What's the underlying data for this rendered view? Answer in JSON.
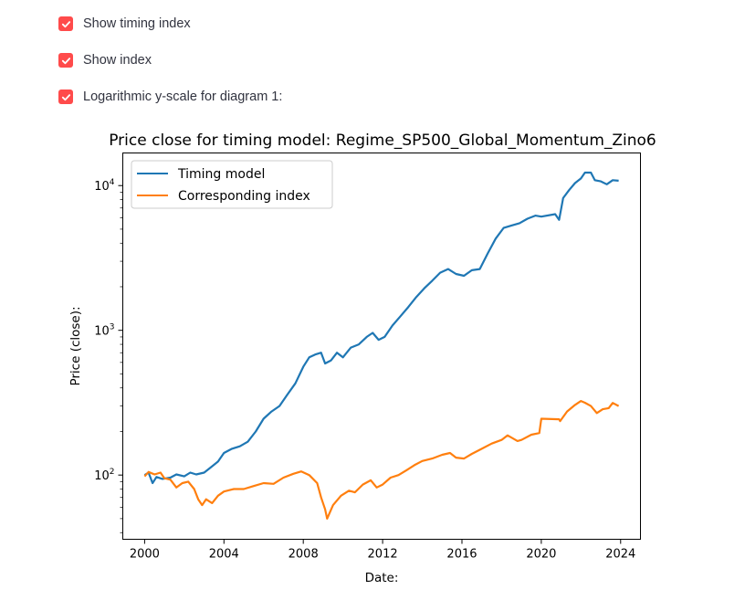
{
  "controls": {
    "checkboxes": [
      {
        "label": "Show timing index",
        "checked": true
      },
      {
        "label": "Show index",
        "checked": true
      },
      {
        "label": "Logarithmic y-scale for diagram 1:",
        "checked": true
      }
    ],
    "accent_color": "#ff4b4b"
  },
  "chart_data": {
    "type": "line",
    "title": "Price close for timing model: Regime_SP500_Global_Momentum_Zino6",
    "xlabel": "Date:",
    "ylabel": "Price (close):",
    "yscale": "log",
    "xlim": [
      1998.9,
      2025.0
    ],
    "ylim": [
      36,
      16800
    ],
    "x_ticks": [
      2000,
      2004,
      2008,
      2012,
      2016,
      2020,
      2024
    ],
    "x_tick_labels": [
      "2000",
      "2004",
      "2008",
      "2012",
      "2016",
      "2020",
      "2024"
    ],
    "y_ticks": [
      100,
      1000,
      10000
    ],
    "y_tick_labels": [
      {
        "base": "10",
        "exp": "2"
      },
      {
        "base": "10",
        "exp": "3"
      },
      {
        "base": "10",
        "exp": "4"
      }
    ],
    "legend_position": "top-left",
    "grid": false,
    "series": [
      {
        "name": "Timing model",
        "color": "#1f77b4",
        "points": [
          [
            2000.0,
            100
          ],
          [
            2000.2,
            104
          ],
          [
            2000.4,
            88
          ],
          [
            2000.6,
            97
          ],
          [
            2000.9,
            94
          ],
          [
            2001.3,
            96
          ],
          [
            2001.6,
            101
          ],
          [
            2002.0,
            98
          ],
          [
            2002.3,
            104
          ],
          [
            2002.6,
            101
          ],
          [
            2003.0,
            104
          ],
          [
            2003.3,
            112
          ],
          [
            2003.7,
            124
          ],
          [
            2004.0,
            142
          ],
          [
            2004.4,
            152
          ],
          [
            2004.8,
            158
          ],
          [
            2005.2,
            170
          ],
          [
            2005.6,
            200
          ],
          [
            2006.0,
            245
          ],
          [
            2006.4,
            275
          ],
          [
            2006.8,
            300
          ],
          [
            2007.2,
            360
          ],
          [
            2007.6,
            430
          ],
          [
            2008.0,
            560
          ],
          [
            2008.3,
            650
          ],
          [
            2008.6,
            680
          ],
          [
            2008.9,
            700
          ],
          [
            2009.1,
            590
          ],
          [
            2009.4,
            620
          ],
          [
            2009.7,
            700
          ],
          [
            2010.0,
            650
          ],
          [
            2010.4,
            760
          ],
          [
            2010.8,
            800
          ],
          [
            2011.2,
            900
          ],
          [
            2011.5,
            960
          ],
          [
            2011.8,
            860
          ],
          [
            2012.1,
            900
          ],
          [
            2012.5,
            1080
          ],
          [
            2012.9,
            1250
          ],
          [
            2013.3,
            1450
          ],
          [
            2013.7,
            1700
          ],
          [
            2014.1,
            1950
          ],
          [
            2014.5,
            2200
          ],
          [
            2014.9,
            2500
          ],
          [
            2015.3,
            2650
          ],
          [
            2015.7,
            2450
          ],
          [
            2016.1,
            2380
          ],
          [
            2016.5,
            2600
          ],
          [
            2016.9,
            2650
          ],
          [
            2017.3,
            3400
          ],
          [
            2017.7,
            4300
          ],
          [
            2018.1,
            5100
          ],
          [
            2018.5,
            5300
          ],
          [
            2018.9,
            5500
          ],
          [
            2019.3,
            5900
          ],
          [
            2019.7,
            6200
          ],
          [
            2020.0,
            6100
          ],
          [
            2020.7,
            6350
          ],
          [
            2020.9,
            5800
          ],
          [
            2021.1,
            8200
          ],
          [
            2021.4,
            9300
          ],
          [
            2021.7,
            10400
          ],
          [
            2022.0,
            11200
          ],
          [
            2022.2,
            12300
          ],
          [
            2022.5,
            12300
          ],
          [
            2022.7,
            10900
          ],
          [
            2023.0,
            10700
          ],
          [
            2023.3,
            10200
          ],
          [
            2023.6,
            10900
          ],
          [
            2023.9,
            10800
          ]
        ]
      },
      {
        "name": "Corresponding index",
        "color": "#ff7f0e",
        "points": [
          [
            2000.0,
            98
          ],
          [
            2000.2,
            105
          ],
          [
            2000.5,
            101
          ],
          [
            2000.8,
            104
          ],
          [
            2001.0,
            95
          ],
          [
            2001.3,
            93
          ],
          [
            2001.6,
            82
          ],
          [
            2001.9,
            88
          ],
          [
            2002.2,
            90
          ],
          [
            2002.5,
            80
          ],
          [
            2002.7,
            68
          ],
          [
            2002.9,
            62
          ],
          [
            2003.1,
            68
          ],
          [
            2003.4,
            64
          ],
          [
            2003.7,
            72
          ],
          [
            2004.0,
            77
          ],
          [
            2004.5,
            80
          ],
          [
            2005.0,
            80
          ],
          [
            2005.5,
            84
          ],
          [
            2006.0,
            88
          ],
          [
            2006.5,
            87
          ],
          [
            2007.0,
            96
          ],
          [
            2007.5,
            102
          ],
          [
            2007.9,
            106
          ],
          [
            2008.3,
            100
          ],
          [
            2008.7,
            88
          ],
          [
            2008.9,
            70
          ],
          [
            2009.1,
            58
          ],
          [
            2009.2,
            50
          ],
          [
            2009.5,
            62
          ],
          [
            2009.9,
            72
          ],
          [
            2010.3,
            78
          ],
          [
            2010.6,
            76
          ],
          [
            2011.0,
            86
          ],
          [
            2011.4,
            92
          ],
          [
            2011.7,
            82
          ],
          [
            2012.0,
            86
          ],
          [
            2012.4,
            96
          ],
          [
            2012.8,
            100
          ],
          [
            2013.2,
            108
          ],
          [
            2013.6,
            117
          ],
          [
            2014.0,
            125
          ],
          [
            2014.5,
            130
          ],
          [
            2015.0,
            138
          ],
          [
            2015.4,
            142
          ],
          [
            2015.7,
            132
          ],
          [
            2016.1,
            130
          ],
          [
            2016.5,
            140
          ],
          [
            2017.0,
            152
          ],
          [
            2017.5,
            165
          ],
          [
            2018.0,
            175
          ],
          [
            2018.3,
            188
          ],
          [
            2018.8,
            172
          ],
          [
            2019.0,
            175
          ],
          [
            2019.5,
            190
          ],
          [
            2019.9,
            195
          ],
          [
            2020.0,
            245
          ],
          [
            2020.9,
            243
          ],
          [
            2020.95,
            236
          ],
          [
            2021.3,
            275
          ],
          [
            2021.7,
            305
          ],
          [
            2022.0,
            325
          ],
          [
            2022.2,
            316
          ],
          [
            2022.5,
            300
          ],
          [
            2022.8,
            268
          ],
          [
            2023.1,
            285
          ],
          [
            2023.4,
            290
          ],
          [
            2023.6,
            315
          ],
          [
            2023.9,
            300
          ]
        ]
      }
    ]
  }
}
